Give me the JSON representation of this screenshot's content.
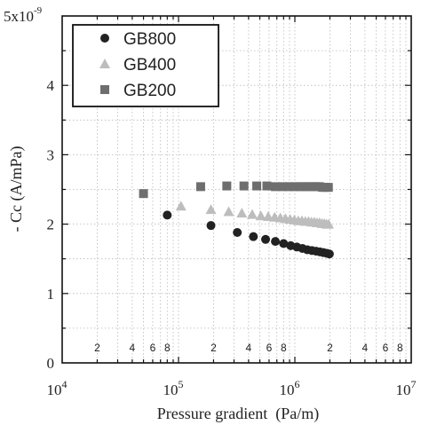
{
  "chart_data": {
    "type": "scatter",
    "x_scale": "log",
    "xlim": [
      10000,
      10000000
    ],
    "ylim": [
      0,
      5e-09
    ],
    "y_multiplier_label": "5x10",
    "y_multiplier_exp": "-9",
    "xlabel": "Pressure gradient  (Pa/m)",
    "ylabel": "- Cc (A/mPa)",
    "grid": true,
    "legend_position": "top-left",
    "x_major_ticks": [
      {
        "value": 10000,
        "base": "10",
        "exp": "4"
      },
      {
        "value": 100000,
        "base": "10",
        "exp": "5"
      },
      {
        "value": 1000000,
        "base": "10",
        "exp": "6"
      },
      {
        "value": 10000000,
        "base": "10",
        "exp": "7"
      }
    ],
    "x_minor_labels": [
      {
        "value": 20000,
        "label": "2"
      },
      {
        "value": 40000,
        "label": "4"
      },
      {
        "value": 60000,
        "label": "6"
      },
      {
        "value": 80000,
        "label": "8"
      },
      {
        "value": 200000,
        "label": "2"
      },
      {
        "value": 400000,
        "label": "4"
      },
      {
        "value": 600000,
        "label": "6"
      },
      {
        "value": 800000,
        "label": "8"
      },
      {
        "value": 2000000,
        "label": "2"
      },
      {
        "value": 4000000,
        "label": "4"
      },
      {
        "value": 6000000,
        "label": "6"
      },
      {
        "value": 8000000,
        "label": "8"
      }
    ],
    "y_ticks": [
      {
        "value": 0,
        "label": "0"
      },
      {
        "value": 1e-09,
        "label": "1"
      },
      {
        "value": 2e-09,
        "label": "2"
      },
      {
        "value": 3e-09,
        "label": "3"
      },
      {
        "value": 4e-09,
        "label": "4"
      }
    ],
    "series": [
      {
        "name": "GB800",
        "marker": "circle",
        "color": "#222222",
        "x": [
          80000,
          190000,
          320000,
          440000,
          560000,
          680000,
          800000,
          920000,
          1040000,
          1160000,
          1280000,
          1400000,
          1520000,
          1640000,
          1760000,
          1880000,
          1980000
        ],
        "y": [
          2.13e-09,
          1.98e-09,
          1.88e-09,
          1.82e-09,
          1.78e-09,
          1.75e-09,
          1.72e-09,
          1.69e-09,
          1.67e-09,
          1.65e-09,
          1.63e-09,
          1.62e-09,
          1.61e-09,
          1.6e-09,
          1.59e-09,
          1.58e-09,
          1.57e-09
        ]
      },
      {
        "name": "GB400",
        "marker": "triangle",
        "color": "#bdbdbd",
        "x": [
          105000,
          190000,
          270000,
          350000,
          430000,
          510000,
          590000,
          670000,
          750000,
          830000,
          910000,
          990000,
          1070000,
          1150000,
          1230000,
          1310000,
          1390000,
          1470000,
          1550000,
          1630000,
          1710000,
          1790000,
          1870000,
          1950000
        ],
        "y": [
          2.26e-09,
          2.21e-09,
          2.18e-09,
          2.16e-09,
          2.14e-09,
          2.12e-09,
          2.11e-09,
          2.1e-09,
          2.09e-09,
          2.08e-09,
          2.07e-09,
          2.06e-09,
          2.05e-09,
          2.05e-09,
          2.04e-09,
          2.04e-09,
          2.03e-09,
          2.03e-09,
          2.02e-09,
          2.02e-09,
          2.01e-09,
          2.01e-09,
          2e-09,
          2e-09
        ]
      },
      {
        "name": "GB200",
        "marker": "square",
        "color": "#6e6e6e",
        "x": [
          50000,
          155000,
          260000,
          365000,
          470000,
          575000,
          680000,
          785000,
          890000,
          995000,
          1100000,
          1205000,
          1310000,
          1415000,
          1520000,
          1625000,
          1730000,
          1835000,
          1940000
        ],
        "y": [
          2.44e-09,
          2.54e-09,
          2.55e-09,
          2.55e-09,
          2.55e-09,
          2.55e-09,
          2.54e-09,
          2.54e-09,
          2.54e-09,
          2.54e-09,
          2.54e-09,
          2.54e-09,
          2.54e-09,
          2.54e-09,
          2.54e-09,
          2.54e-09,
          2.53e-09,
          2.53e-09,
          2.53e-09
        ]
      }
    ]
  }
}
